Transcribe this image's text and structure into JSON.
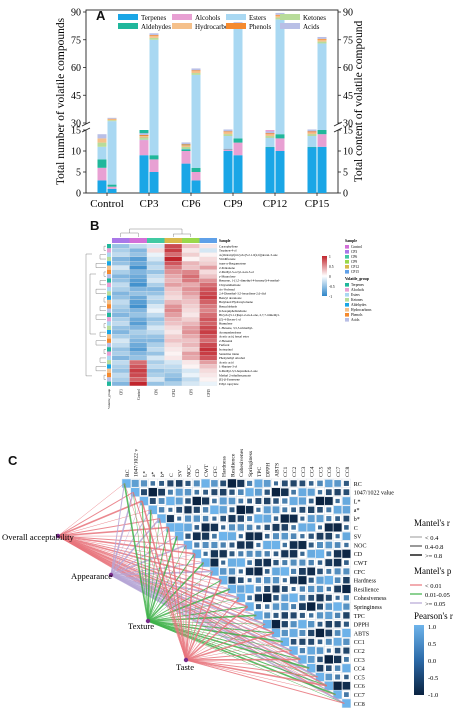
{
  "panels": {
    "a": "A",
    "b": "B",
    "c": "C"
  },
  "chart_data": [
    {
      "type": "bar",
      "stacked": true,
      "categories": [
        "Control",
        "CP3",
        "CP6",
        "CP9",
        "CP12",
        "CP15"
      ],
      "ylabel": "Total number of volatile compounds",
      "y2label": "Total content of volatile compound",
      "y_ticks": [
        "0",
        "5",
        "10",
        "15",
        "30",
        "45",
        "60",
        "75",
        "90"
      ],
      "y2_ticks": [
        "0",
        "5",
        "10",
        "15",
        "30",
        "45",
        "60",
        "75",
        "90"
      ],
      "ylim": [
        0,
        90
      ],
      "axis_break": [
        15,
        30
      ],
      "legend": [
        "Terpenes",
        "Alcohols",
        "Esters",
        "Ketones",
        "Aldehydes",
        "Hydrocarbons",
        "Phenols",
        "Acids"
      ],
      "colors": {
        "Terpenes": "#1aa6e6",
        "Alcohols": "#e8a0d3",
        "Esters": "#a9d8f2",
        "Ketones": "#b8dc9a",
        "Aldehydes": "#20b79b",
        "Hydrocarbons": "#f5c08a",
        "Phenols": "#f58a2e",
        "Acids": "#b9bfe6"
      },
      "series_left": [
        {
          "name": "Terpenes",
          "values": [
            3,
            9,
            7,
            10,
            11,
            11
          ]
        },
        {
          "name": "Alcohols",
          "values": [
            3,
            4,
            3,
            4,
            4,
            4
          ]
        },
        {
          "name": "Aldehydes",
          "values": [
            2,
            2,
            2,
            2,
            2,
            2
          ]
        },
        {
          "name": "Esters",
          "values": [
            3,
            6,
            4,
            7,
            5,
            6
          ]
        },
        {
          "name": "Ketones",
          "values": [
            1,
            1,
            1,
            1,
            1,
            1
          ]
        },
        {
          "name": "Hydrocarbons",
          "values": [
            1,
            1,
            1,
            1,
            1,
            1
          ]
        },
        {
          "name": "Phenols",
          "values": [
            0,
            0.5,
            0.5,
            0.5,
            0.5,
            0.5
          ]
        },
        {
          "name": "Acids",
          "values": [
            1,
            1,
            1,
            1,
            1,
            1
          ]
        }
      ],
      "series_right": [
        {
          "name": "Terpenes",
          "values": [
            1,
            5,
            3,
            9,
            10,
            11
          ]
        },
        {
          "name": "Alcohols",
          "values": [
            0.5,
            3,
            2,
            3,
            3,
            3
          ]
        },
        {
          "name": "Aldehydes",
          "values": [
            0.5,
            1,
            1,
            1,
            1,
            1
          ]
        },
        {
          "name": "Esters",
          "values": [
            29,
            66,
            50,
            68,
            72,
            58
          ]
        },
        {
          "name": "Ketones",
          "values": [
            0.5,
            1,
            1,
            1,
            1,
            1
          ]
        },
        {
          "name": "Hydrocarbons",
          "values": [
            0.5,
            1,
            1,
            1,
            1,
            1
          ]
        },
        {
          "name": "Phenols",
          "values": [
            0.3,
            0.5,
            0.5,
            0.5,
            0.5,
            0.5
          ]
        },
        {
          "name": "Acids",
          "values": [
            0.5,
            1,
            1,
            1,
            1,
            1
          ]
        }
      ]
    },
    {
      "type": "heatmap",
      "columns": [
        "CP3",
        "Control",
        "CP6",
        "CP12",
        "CP9",
        "CP15"
      ],
      "rows": [
        "Caryophyllene",
        "Terpinen-4-ol",
        "4-(Oxiranyl)tricyclo[5.2.1.0(2,6)]decan-3-one",
        "Viridiflorene",
        "trans-α-Bergamotene",
        "2-Pentanone",
        "2-Methyl-3-octyl-4-en-3-ol",
        "γ-Muurolene",
        "Benzene, 1-(1,5-dimethyl-4-hexenyl)-4-methyl-",
        "Chrysanthemone",
        "cis-Verbenol",
        "2,4-Dimethyl-3,5-hexadiene-2,6-diol",
        "Benzyl decanoate",
        "Butylated Hydroxytoluene",
        "Benzaldehyde",
        "β-Sesquiphellandrene",
        "Bicyclo[3.1.1]hept-2-en-4-one, 2,7,7-trimethyl-",
        "(Z)-4-Decen-1-ol",
        "Humulene",
        "1-Hexene, 3,5,5-trimethyl-",
        "Aromandendrene",
        "Acetic acid, hexyl ester",
        "2-Hexenal",
        "Furfural",
        "Isoterpinol",
        "Santolina triene",
        "Phenylethyl Alcohol",
        "Acetic acid",
        "1-Heptyn-3-ol",
        "6-Methyl-3,5-heptadien-2-one",
        "Methyl 2-ethylhexanoate",
        "(E)-β-Farnesene",
        "Ethyl caprylate"
      ],
      "values": [
        [
          -0.5,
          -0.3,
          -0.2,
          1.5,
          0.5,
          0.2
        ],
        [
          -0.4,
          -0.6,
          0.3,
          1.6,
          0.2,
          -0.2
        ],
        [
          -0.3,
          -0.5,
          -0.1,
          1.2,
          0.4,
          0.1
        ],
        [
          -0.6,
          -0.8,
          -0.2,
          1.8,
          0.1,
          0.3
        ],
        [
          -0.5,
          -0.7,
          -0.4,
          1.4,
          0.6,
          0.4
        ],
        [
          -0.2,
          -0.9,
          -0.3,
          1.1,
          0.5,
          0.8
        ],
        [
          -0.4,
          -0.6,
          -0.5,
          0.9,
          1.0,
          0.3
        ],
        [
          -0.6,
          -0.7,
          -0.3,
          0.7,
          1.2,
          0.5
        ],
        [
          -0.5,
          -0.8,
          -0.2,
          0.6,
          1.1,
          0.9
        ],
        [
          -0.3,
          -0.9,
          -0.4,
          0.8,
          0.7,
          1.2
        ],
        [
          -0.4,
          -0.6,
          -0.6,
          0.5,
          0.9,
          1.4
        ],
        [
          -0.6,
          -0.5,
          -0.5,
          0.4,
          0.8,
          1.5
        ],
        [
          -0.5,
          -0.7,
          -0.3,
          0.3,
          0.6,
          1.6
        ],
        [
          -0.3,
          -0.8,
          -0.4,
          0.6,
          0.5,
          1.3
        ],
        [
          -0.4,
          -0.9,
          -0.2,
          0.9,
          0.4,
          1.1
        ],
        [
          -0.5,
          -0.6,
          -0.1,
          1.0,
          0.3,
          1.0
        ],
        [
          -0.6,
          -0.5,
          -0.3,
          0.8,
          0.2,
          1.2
        ],
        [
          -0.4,
          -0.7,
          -0.5,
          0.6,
          0.4,
          1.4
        ],
        [
          -0.3,
          -0.8,
          -0.4,
          0.5,
          0.6,
          1.3
        ],
        [
          -0.5,
          -0.6,
          -0.2,
          0.3,
          0.8,
          1.5
        ],
        [
          -0.6,
          -0.4,
          -0.3,
          0.2,
          0.9,
          1.6
        ],
        [
          -0.4,
          -0.5,
          -0.5,
          0.4,
          0.7,
          1.4
        ],
        [
          -0.2,
          -0.6,
          -0.6,
          0.5,
          0.5,
          1.2
        ],
        [
          -0.3,
          -0.7,
          -0.4,
          0.3,
          0.6,
          1.5
        ],
        [
          -0.5,
          -0.8,
          -0.3,
          0.2,
          0.4,
          1.7
        ],
        [
          -0.4,
          -0.6,
          -0.5,
          0.1,
          0.8,
          1.6
        ],
        [
          -0.6,
          -0.5,
          -0.2,
          0.2,
          0.7,
          1.4
        ],
        [
          -0.3,
          1.2,
          -0.4,
          -0.2,
          0.2,
          0.8
        ],
        [
          -0.4,
          1.4,
          -0.3,
          -0.3,
          0.1,
          0.5
        ],
        [
          -0.5,
          1.6,
          -0.5,
          -0.4,
          -0.2,
          0.3
        ],
        [
          -0.3,
          1.5,
          -0.4,
          -0.5,
          -0.1,
          0.2
        ],
        [
          -0.4,
          1.3,
          -0.2,
          -0.6,
          -0.3,
          0.1
        ],
        [
          -0.6,
          1.8,
          -0.5,
          -0.4,
          -0.2,
          -0.1
        ]
      ],
      "scale_ticks": [
        "1",
        "0.5",
        "0",
        "-0.5",
        "-1"
      ],
      "legend_titles": [
        "Sample",
        "Volatile_group"
      ],
      "sample_legend": [
        "Control",
        "CP3",
        "CP6",
        "CP9",
        "CP12",
        "CP15"
      ],
      "group_legend": [
        "Terpenes",
        "Alcohols",
        "Esters",
        "Ketones",
        "Aldehydes",
        "Hydrocarbons",
        "Phenols",
        "Acids"
      ],
      "bottom_label": "Volatile_group",
      "colors": {
        "high": "#c1252d",
        "mid": "#ffffff",
        "low": "#2e86c9"
      }
    },
    {
      "type": "heatmap",
      "variables": [
        "RC",
        "1047/1022 value",
        "L*",
        "a*",
        "b*",
        "C",
        "SV",
        "NOC",
        "CD",
        "CWT",
        "CFC",
        "Hardness",
        "Resilience",
        "Cohesiveness",
        "Springiness",
        "TPC",
        "DPPH",
        "ABTS",
        "CC1",
        "CC2",
        "CC3",
        "CC4",
        "CC5",
        "CC6",
        "CC7",
        "CC8"
      ],
      "sensory": [
        "Overall acceptability",
        "Appearance",
        "Texture",
        "Taste"
      ],
      "mantel_r_legend_title": "Mantel's r",
      "mantel_r_legend": [
        "< 0.4",
        "0.4-0.8",
        ">= 0.8"
      ],
      "mantel_p_legend_title": "Mantel's p",
      "mantel_p_legend": [
        "< 0.01",
        "0.01-0.05",
        ">= 0.05"
      ],
      "pearson_title": "Pearson's r",
      "pearson_ticks": [
        "1.0",
        "0.5",
        "0.0",
        "-0.5",
        "-1.0"
      ],
      "colors": {
        "p_lt_001": "#e8747c",
        "p_001_005": "#3fb24a",
        "p_ge_005": "#b6a6d6",
        "pos": "#5aa8e6",
        "neg": "#0a2240"
      }
    }
  ]
}
